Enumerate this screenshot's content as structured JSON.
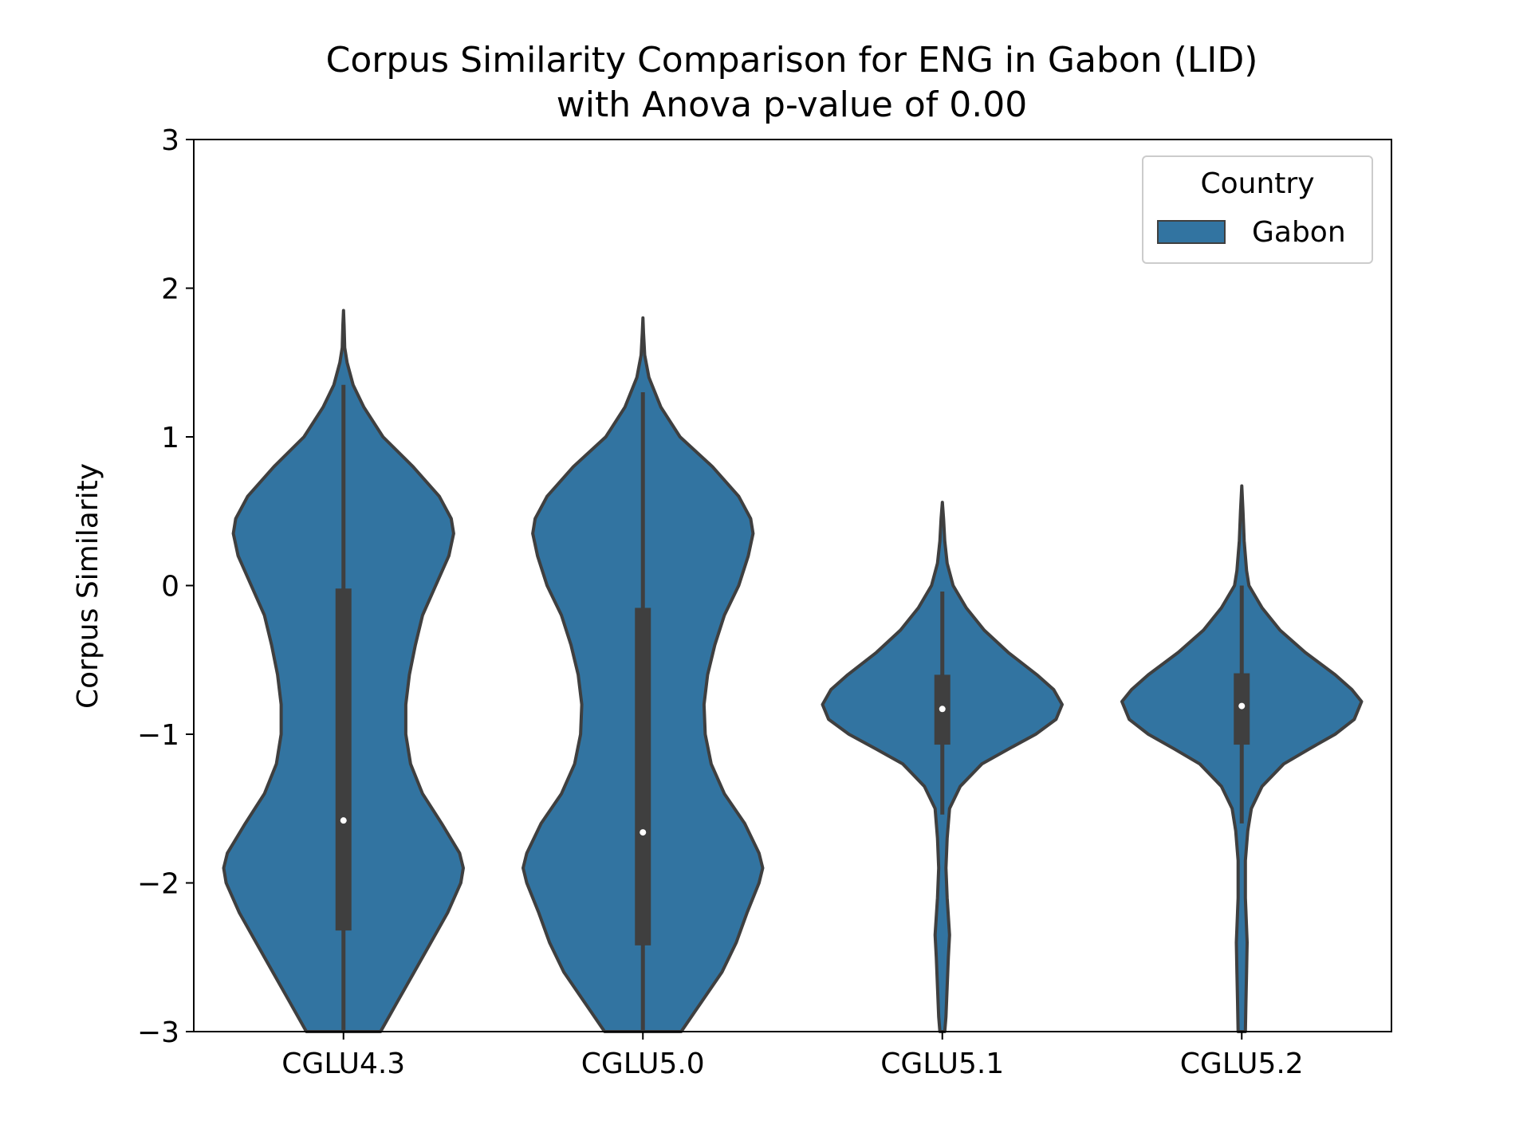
{
  "chart_data": {
    "type": "violin",
    "title_line1": "Corpus Similarity Comparison for ENG in Gabon (LID)",
    "title_line2": "with Anova p-value of 0.00",
    "xlabel": "",
    "ylabel": "Corpus Similarity",
    "ylim": [
      -3,
      3
    ],
    "yticks": [
      3,
      2,
      1,
      0,
      -1,
      -2,
      -3
    ],
    "ytick_labels": [
      "3",
      "2",
      "1",
      "0",
      "−1",
      "−2",
      "−3"
    ],
    "categories": [
      "CGLU4.3",
      "CGLU5.0",
      "CGLU5.1",
      "CGLU5.2"
    ],
    "grid": false,
    "legend": {
      "title": "Country",
      "position": "top-right",
      "entries": [
        "Gabon"
      ]
    },
    "colors": {
      "fill": "#3274a1",
      "edge": "#3f3f3f",
      "box": "#3f3f3f",
      "median": "#ffffff"
    },
    "series": [
      {
        "name": "Gabon",
        "violins": [
          {
            "category": "CGLU4.3",
            "max": 1.85,
            "whisker_high": 1.35,
            "q3": -0.02,
            "median": -1.58,
            "q1": -2.32,
            "whisker_low": -3.0,
            "density": [
              [
                1.85,
                0.0
              ],
              [
                1.75,
                0.005
              ],
              [
                1.6,
                0.01
              ],
              [
                1.5,
                0.03
              ],
              [
                1.35,
                0.08
              ],
              [
                1.2,
                0.17
              ],
              [
                1.0,
                0.33
              ],
              [
                0.8,
                0.58
              ],
              [
                0.6,
                0.8
              ],
              [
                0.45,
                0.9
              ],
              [
                0.35,
                0.92
              ],
              [
                0.2,
                0.88
              ],
              [
                0.0,
                0.77
              ],
              [
                -0.2,
                0.66
              ],
              [
                -0.4,
                0.6
              ],
              [
                -0.6,
                0.55
              ],
              [
                -0.8,
                0.52
              ],
              [
                -1.0,
                0.52
              ],
              [
                -1.2,
                0.56
              ],
              [
                -1.4,
                0.66
              ],
              [
                -1.6,
                0.82
              ],
              [
                -1.8,
                0.97
              ],
              [
                -1.9,
                1.0
              ],
              [
                -2.0,
                0.98
              ],
              [
                -2.2,
                0.87
              ],
              [
                -2.4,
                0.73
              ],
              [
                -2.6,
                0.59
              ],
              [
                -2.8,
                0.45
              ],
              [
                -3.0,
                0.31
              ]
            ]
          },
          {
            "category": "CGLU5.0",
            "max": 1.8,
            "whisker_high": 1.3,
            "q3": -0.15,
            "median": -1.66,
            "q1": -2.42,
            "whisker_low": -3.0,
            "density": [
              [
                1.8,
                0.0
              ],
              [
                1.7,
                0.005
              ],
              [
                1.55,
                0.015
              ],
              [
                1.4,
                0.05
              ],
              [
                1.2,
                0.15
              ],
              [
                1.0,
                0.31
              ],
              [
                0.8,
                0.58
              ],
              [
                0.6,
                0.8
              ],
              [
                0.45,
                0.9
              ],
              [
                0.35,
                0.92
              ],
              [
                0.2,
                0.88
              ],
              [
                0.0,
                0.8
              ],
              [
                -0.2,
                0.68
              ],
              [
                -0.4,
                0.6
              ],
              [
                -0.6,
                0.54
              ],
              [
                -0.8,
                0.51
              ],
              [
                -1.0,
                0.52
              ],
              [
                -1.2,
                0.57
              ],
              [
                -1.4,
                0.68
              ],
              [
                -1.6,
                0.85
              ],
              [
                -1.8,
                0.97
              ],
              [
                -1.9,
                1.0
              ],
              [
                -2.0,
                0.97
              ],
              [
                -2.2,
                0.87
              ],
              [
                -2.4,
                0.78
              ],
              [
                -2.6,
                0.66
              ],
              [
                -2.8,
                0.49
              ],
              [
                -3.0,
                0.32
              ]
            ]
          },
          {
            "category": "CGLU5.1",
            "max": 0.56,
            "whisker_high": -0.04,
            "q3": -0.6,
            "median": -0.83,
            "q1": -1.07,
            "whisker_low": -1.54,
            "density": [
              [
                0.56,
                0.0
              ],
              [
                0.45,
                0.01
              ],
              [
                0.3,
                0.02
              ],
              [
                0.15,
                0.04
              ],
              [
                0.0,
                0.09
              ],
              [
                -0.15,
                0.2
              ],
              [
                -0.3,
                0.35
              ],
              [
                -0.45,
                0.55
              ],
              [
                -0.6,
                0.79
              ],
              [
                -0.7,
                0.93
              ],
              [
                -0.8,
                1.0
              ],
              [
                -0.9,
                0.95
              ],
              [
                -1.0,
                0.78
              ],
              [
                -1.1,
                0.55
              ],
              [
                -1.2,
                0.33
              ],
              [
                -1.35,
                0.15
              ],
              [
                -1.5,
                0.06
              ],
              [
                -1.7,
                0.04
              ],
              [
                -1.9,
                0.03
              ],
              [
                -2.1,
                0.04
              ],
              [
                -2.35,
                0.06
              ],
              [
                -2.5,
                0.05
              ],
              [
                -2.7,
                0.04
              ],
              [
                -2.9,
                0.03
              ],
              [
                -3.0,
                0.02
              ]
            ]
          },
          {
            "category": "CGLU5.2",
            "max": 0.67,
            "whisker_high": 0.0,
            "q3": -0.59,
            "median": -0.81,
            "q1": -1.07,
            "whisker_low": -1.6,
            "density": [
              [
                0.67,
                0.0
              ],
              [
                0.5,
                0.01
              ],
              [
                0.3,
                0.02
              ],
              [
                0.1,
                0.04
              ],
              [
                0.0,
                0.06
              ],
              [
                -0.15,
                0.17
              ],
              [
                -0.3,
                0.32
              ],
              [
                -0.45,
                0.53
              ],
              [
                -0.6,
                0.78
              ],
              [
                -0.7,
                0.92
              ],
              [
                -0.78,
                1.0
              ],
              [
                -0.9,
                0.94
              ],
              [
                -1.0,
                0.78
              ],
              [
                -1.1,
                0.56
              ],
              [
                -1.2,
                0.35
              ],
              [
                -1.35,
                0.17
              ],
              [
                -1.5,
                0.08
              ],
              [
                -1.65,
                0.05
              ],
              [
                -1.85,
                0.03
              ],
              [
                -2.1,
                0.03
              ],
              [
                -2.4,
                0.045
              ],
              [
                -2.6,
                0.04
              ],
              [
                -2.8,
                0.035
              ],
              [
                -3.0,
                0.03
              ]
            ]
          }
        ]
      }
    ]
  }
}
